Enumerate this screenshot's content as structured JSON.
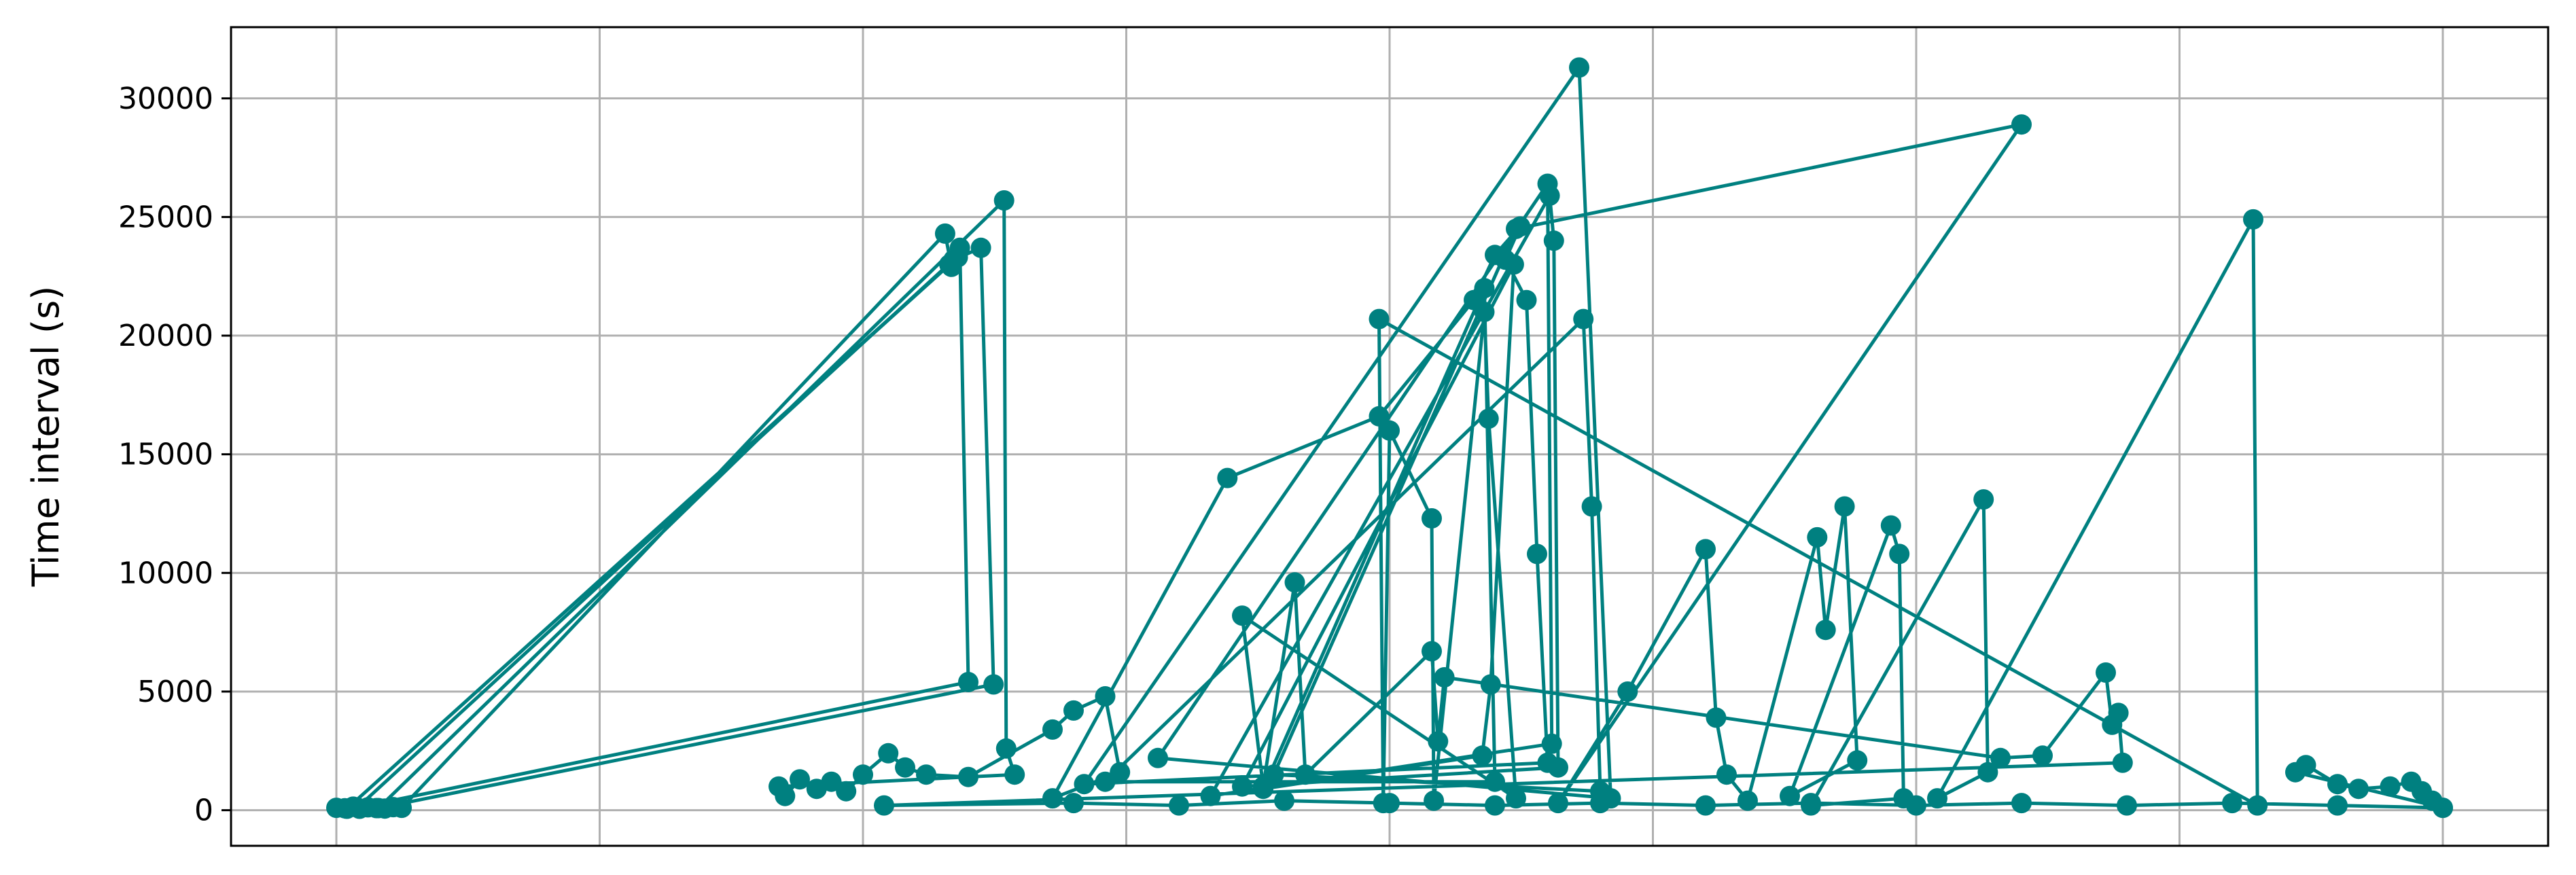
{
  "chart_data": {
    "type": "line",
    "title": "",
    "xlabel": "",
    "ylabel": "Time interval (s)",
    "x_tick_labels_visible": false,
    "xlim": [
      -0.05,
      1.05
    ],
    "ylim": [
      -1500,
      33000
    ],
    "yticks": [
      0,
      5000,
      10000,
      15000,
      20000,
      25000,
      30000
    ],
    "ytick_labels": [
      "0",
      "5000",
      "10000",
      "15000",
      "20000",
      "25000",
      "30000"
    ],
    "xgrid_count": 9,
    "grid": true,
    "legend": "none",
    "markers": true,
    "series": [
      {
        "color": "#008080",
        "points": [
          [
            0.0,
            100
          ],
          [
            0.004,
            80
          ],
          [
            0.008,
            150
          ],
          [
            0.011,
            60
          ],
          [
            0.015,
            120
          ],
          [
            0.019,
            90
          ],
          [
            0.023,
            70
          ],
          [
            0.027,
            130
          ],
          [
            0.031,
            100
          ],
          [
            0.289,
            24300
          ],
          [
            0.292,
            22900
          ],
          [
            0.295,
            23300
          ],
          [
            0.005,
            60
          ],
          [
            0.291,
            23000
          ],
          [
            0.296,
            23700
          ],
          [
            0.3,
            5400
          ],
          [
            0.01,
            110
          ],
          [
            0.293,
            23200
          ],
          [
            0.306,
            23700
          ],
          [
            0.312,
            5300
          ],
          [
            0.02,
            90
          ],
          [
            0.317,
            25700
          ],
          [
            0.318,
            2600
          ],
          [
            0.322,
            1500
          ],
          [
            0.21,
            1000
          ],
          [
            0.213,
            600
          ],
          [
            0.22,
            1300
          ],
          [
            0.228,
            900
          ],
          [
            0.235,
            1200
          ],
          [
            0.242,
            800
          ],
          [
            0.25,
            1500
          ],
          [
            0.262,
            2400
          ],
          [
            0.27,
            1800
          ],
          [
            0.28,
            1500
          ],
          [
            0.3,
            1400
          ],
          [
            0.34,
            3400
          ],
          [
            0.35,
            4200
          ],
          [
            0.365,
            4800
          ],
          [
            0.372,
            1600
          ],
          [
            0.34,
            500
          ],
          [
            0.423,
            14000
          ],
          [
            0.495,
            16600
          ],
          [
            0.54,
            21500
          ],
          [
            0.55,
            23400
          ],
          [
            0.562,
            24600
          ],
          [
            0.555,
            23200
          ],
          [
            0.565,
            21500
          ],
          [
            0.57,
            10800
          ],
          [
            0.575,
            2000
          ],
          [
            0.355,
            1100
          ],
          [
            0.59,
            31300
          ],
          [
            0.605,
            500
          ],
          [
            0.39,
            2200
          ],
          [
            0.575,
            26400
          ],
          [
            0.577,
            2800
          ],
          [
            0.415,
            600
          ],
          [
            0.576,
            25900
          ],
          [
            0.578,
            24000
          ],
          [
            0.58,
            1800
          ],
          [
            0.43,
            1000
          ],
          [
            0.559,
            23000
          ],
          [
            0.548,
            5300
          ],
          [
            0.544,
            2300
          ],
          [
            0.44,
            900
          ],
          [
            0.545,
            22000
          ],
          [
            0.55,
            1200
          ],
          [
            0.365,
            1200
          ],
          [
            0.592,
            20700
          ],
          [
            0.596,
            12800
          ],
          [
            0.6,
            800
          ],
          [
            0.445,
            1500
          ],
          [
            0.56,
            24500
          ],
          [
            0.8,
            28900
          ],
          [
            0.58,
            300
          ],
          [
            0.613,
            5000
          ],
          [
            0.65,
            11000
          ],
          [
            0.655,
            3900
          ],
          [
            0.66,
            1500
          ],
          [
            0.67,
            400
          ],
          [
            0.703,
            11500
          ],
          [
            0.707,
            7600
          ],
          [
            0.716,
            12800
          ],
          [
            0.722,
            2100
          ],
          [
            0.69,
            600
          ],
          [
            0.738,
            12000
          ],
          [
            0.742,
            10800
          ],
          [
            0.744,
            500
          ],
          [
            0.7,
            200
          ],
          [
            0.782,
            13100
          ],
          [
            0.784,
            1600
          ],
          [
            0.76,
            500
          ],
          [
            0.91,
            24900
          ],
          [
            0.912,
            200
          ],
          [
            0.495,
            20700
          ],
          [
            0.497,
            300
          ],
          [
            0.5,
            16000
          ],
          [
            0.52,
            12300
          ],
          [
            0.521,
            400
          ],
          [
            0.545,
            21000
          ],
          [
            0.547,
            16500
          ],
          [
            0.56,
            500
          ],
          [
            0.43,
            8200
          ],
          [
            0.44,
            1000
          ],
          [
            0.455,
            9600
          ],
          [
            0.46,
            1500
          ],
          [
            0.52,
            6700
          ],
          [
            0.523,
            2900
          ],
          [
            0.526,
            5600
          ],
          [
            0.79,
            2200
          ],
          [
            0.81,
            2300
          ],
          [
            0.84,
            5800
          ],
          [
            0.843,
            3600
          ],
          [
            0.846,
            4100
          ],
          [
            0.848,
            2000
          ],
          [
            0.26,
            200
          ],
          [
            0.35,
            300
          ],
          [
            0.4,
            200
          ],
          [
            0.45,
            400
          ],
          [
            0.5,
            300
          ],
          [
            0.55,
            200
          ],
          [
            0.6,
            300
          ],
          [
            0.65,
            200
          ],
          [
            0.7,
            300
          ],
          [
            0.75,
            200
          ],
          [
            0.8,
            300
          ],
          [
            0.85,
            200
          ],
          [
            0.9,
            300
          ],
          [
            0.95,
            200
          ],
          [
            1.0,
            100
          ],
          [
            0.93,
            1600
          ],
          [
            0.935,
            1900
          ],
          [
            0.95,
            1100
          ],
          [
            0.96,
            900
          ],
          [
            0.975,
            1000
          ],
          [
            0.985,
            1200
          ],
          [
            0.99,
            800
          ],
          [
            0.995,
            400
          ],
          [
            1.0,
            100
          ]
        ]
      }
    ]
  }
}
